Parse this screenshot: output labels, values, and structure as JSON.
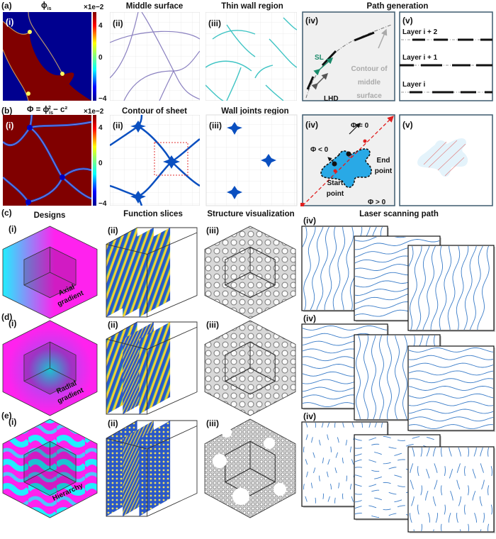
{
  "colors": {
    "jet_low": "#00008f",
    "jet_high": "#800000",
    "middle_surface": "#8a80c0",
    "thin_wall": "#3fc4c4",
    "sheet": "#0a4fc0",
    "blob": "#29a9e6",
    "path": "#3a7cc8",
    "magenta": "#ff22ee",
    "cyan": "#22eeff",
    "panel_border": "#3d5a6e"
  },
  "a": {
    "label": "(a)",
    "c1_title_main": "ϕ",
    "c1_title_sub": "is",
    "c1_sub": "(i)",
    "scale": "×1e−2",
    "ticks": [
      "4",
      "0",
      "−4"
    ],
    "c2_title": "Middle surface",
    "c2_sub": "(ii)",
    "c3_title": "Thin wall region",
    "c3_sub": "(iii)",
    "path_title": "Path generation",
    "c4_sub": "(iv)",
    "sl": "SL",
    "lhd": "LHD",
    "contour": [
      "Contour of",
      "middle",
      "surface"
    ],
    "c5_sub": "(v)",
    "layers": [
      "Layer i + 2",
      "Layer i + 1",
      "Layer i"
    ]
  },
  "b": {
    "label": "(b)",
    "c1_title_pre": "Φ = ϕ",
    "c1_title_sub": "is",
    "c1_title_sup": "2",
    "c1_title_post": " − c²",
    "c1_sub": "(i)",
    "scale": "×1e−2",
    "ticks": [
      "4",
      "0",
      "−4"
    ],
    "c2_title": "Contour of sheet",
    "c2_sub": "(ii)",
    "c3_title": "Wall joints region",
    "c3_sub": "(iii)",
    "c4_sub": "(iv)",
    "phi_zero": "Φ = 0",
    "phi_neg": "Φ < 0",
    "phi_pos": "Φ > 0",
    "end_point": [
      "End",
      "point"
    ],
    "start_point": [
      "Start",
      "point"
    ],
    "c5_sub": "(v)"
  },
  "lower": {
    "titles": [
      "Designs",
      "Function slices",
      "Structure visualization",
      "Laser scanning path"
    ],
    "rows": [
      {
        "label": "(c)",
        "design": [
          "Axial",
          "gradient"
        ]
      },
      {
        "label": "(d)",
        "design": [
          "Radial",
          "gradient"
        ]
      },
      {
        "label": "(e)",
        "design": [
          "Hierarchy"
        ]
      }
    ],
    "subs": [
      "(i)",
      "(ii)",
      "(iii)",
      "(iv)"
    ]
  }
}
